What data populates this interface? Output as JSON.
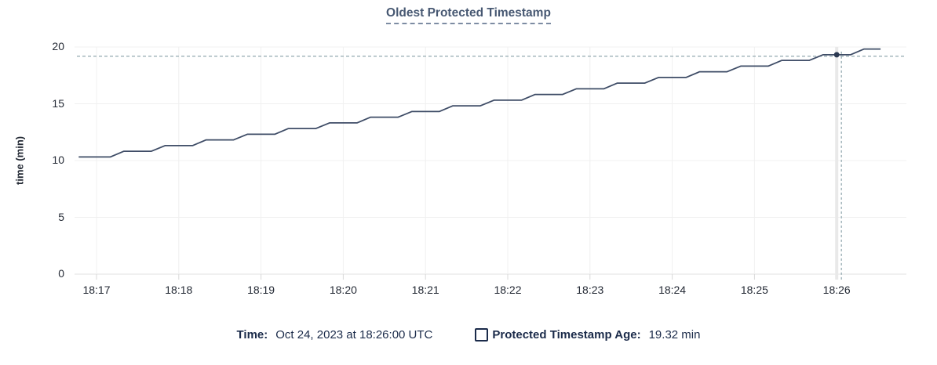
{
  "title": "Oldest Protected Timestamp",
  "colors": {
    "series_line": "#3e4c66",
    "marker": "#2c3a52",
    "crosshair": "#9db1b7",
    "title_text": "#475872",
    "axis_text": "#242a35",
    "legend_text": "#1b2b4a",
    "gridline": "#f0f0f0",
    "axis_line": "#e2e2e2",
    "tick_mark": "#d8d8d8",
    "hover_band": "#e9e9e9"
  },
  "chart_data": {
    "type": "line",
    "title": "Oldest Protected Timestamp",
    "xlabel": "",
    "ylabel": "time (min)",
    "x_ticks": [
      "18:17",
      "18:18",
      "18:19",
      "18:20",
      "18:21",
      "18:22",
      "18:23",
      "18:24",
      "18:25",
      "18:26"
    ],
    "y_ticks": [
      0,
      5,
      10,
      15,
      20
    ],
    "ylim": [
      0,
      20
    ],
    "grid": true,
    "legend_position": "bottom",
    "x_unit_note": "seconds after 18:17:00 UTC, Oct 24 2023",
    "series": [
      {
        "name": "Protected Timestamp Age",
        "unit": "min",
        "points": [
          [
            -13,
            10.32
          ],
          [
            10,
            10.32
          ],
          [
            20,
            10.82
          ],
          [
            40,
            10.82
          ],
          [
            50,
            11.32
          ],
          [
            70,
            11.32
          ],
          [
            80,
            11.82
          ],
          [
            100,
            11.82
          ],
          [
            110,
            12.32
          ],
          [
            130,
            12.32
          ],
          [
            140,
            12.82
          ],
          [
            160,
            12.82
          ],
          [
            170,
            13.32
          ],
          [
            190,
            13.32
          ],
          [
            200,
            13.82
          ],
          [
            220,
            13.82
          ],
          [
            230,
            14.32
          ],
          [
            250,
            14.32
          ],
          [
            260,
            14.82
          ],
          [
            280,
            14.82
          ],
          [
            290,
            15.32
          ],
          [
            310,
            15.32
          ],
          [
            320,
            15.82
          ],
          [
            340,
            15.82
          ],
          [
            350,
            16.32
          ],
          [
            370,
            16.32
          ],
          [
            380,
            16.82
          ],
          [
            400,
            16.82
          ],
          [
            410,
            17.32
          ],
          [
            430,
            17.32
          ],
          [
            440,
            17.82
          ],
          [
            460,
            17.82
          ],
          [
            470,
            18.32
          ],
          [
            490,
            18.32
          ],
          [
            500,
            18.82
          ],
          [
            520,
            18.82
          ],
          [
            530,
            19.32
          ],
          [
            550,
            19.32
          ],
          [
            560,
            19.82
          ],
          [
            572,
            19.82
          ]
        ]
      }
    ],
    "crosshair": {
      "t": 540,
      "value": 19.32,
      "hover_time": "18:26:00"
    }
  },
  "legend": {
    "time_label": "Time:",
    "time_value": "Oct 24, 2023 at 18:26:00 UTC",
    "series_label": "Protected Timestamp Age:",
    "series_value": "19.32 min"
  }
}
